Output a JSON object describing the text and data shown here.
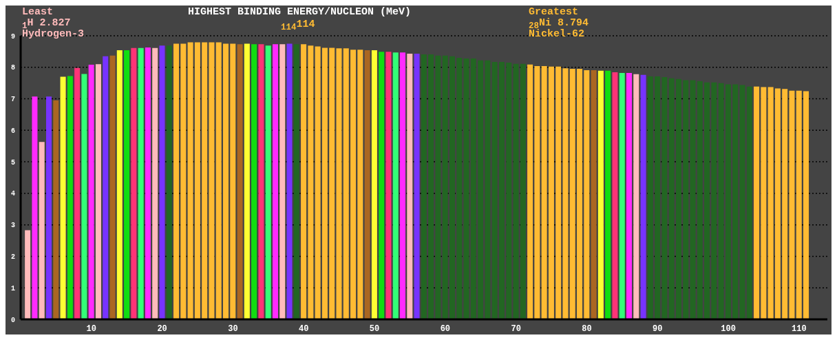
{
  "chart_data": {
    "type": "bar",
    "title": "HIGHEST BINDING ENERGY/NUCLEON (MeV)",
    "annotations": [
      "Least",
      "$_{1}$H 2.827",
      "Hydrogen-3",
      "$_{114}$114",
      "Greatest",
      "$_{28}$Ni 8.794",
      "Nickel-62"
    ],
    "x": [
      1,
      2,
      3,
      4,
      5,
      6,
      7,
      8,
      9,
      10,
      11,
      12,
      13,
      14,
      15,
      16,
      17,
      18,
      19,
      20,
      21,
      22,
      23,
      24,
      25,
      26,
      27,
      28,
      29,
      30,
      31,
      32,
      33,
      34,
      35,
      36,
      37,
      38,
      39,
      40,
      41,
      42,
      43,
      44,
      45,
      46,
      47,
      48,
      49,
      50,
      51,
      52,
      53,
      54,
      55,
      56,
      57,
      58,
      59,
      60,
      61,
      62,
      63,
      64,
      65,
      66,
      67,
      68,
      69,
      70,
      71,
      72,
      73,
      74,
      75,
      76,
      77,
      78,
      79,
      80,
      81,
      82,
      83,
      84,
      85,
      86,
      87,
      88,
      89,
      90,
      91,
      92,
      93,
      94,
      95,
      96,
      97,
      98,
      99,
      100,
      101,
      102,
      103,
      104,
      105,
      106,
      107,
      108,
      109,
      110,
      111
    ],
    "values": [
      2.827,
      7.07,
      5.63,
      7.07,
      6.95,
      7.7,
      7.72,
      7.98,
      7.79,
      8.08,
      8.1,
      8.35,
      8.37,
      8.54,
      8.54,
      8.61,
      8.61,
      8.63,
      8.61,
      8.69,
      8.69,
      8.75,
      8.75,
      8.79,
      8.79,
      8.79,
      8.79,
      8.794,
      8.75,
      8.75,
      8.73,
      8.75,
      8.73,
      8.73,
      8.69,
      8.73,
      8.73,
      8.75,
      8.73,
      8.73,
      8.69,
      8.66,
      8.62,
      8.62,
      8.6,
      8.6,
      8.56,
      8.56,
      8.54,
      8.54,
      8.49,
      8.49,
      8.47,
      8.47,
      8.43,
      8.43,
      8.41,
      8.41,
      8.37,
      8.37,
      8.35,
      8.3,
      8.28,
      8.28,
      8.22,
      8.22,
      8.17,
      8.17,
      8.15,
      8.11,
      8.11,
      8.09,
      8.04,
      8.04,
      8.02,
      8.02,
      7.97,
      7.95,
      7.95,
      7.91,
      7.91,
      7.89,
      7.89,
      7.84,
      7.82,
      7.82,
      7.78,
      7.76,
      7.71,
      7.71,
      7.69,
      7.65,
      7.63,
      7.59,
      7.59,
      7.56,
      7.52,
      7.52,
      7.5,
      7.46,
      7.46,
      7.44,
      7.39,
      7.39,
      7.37,
      7.37,
      7.33,
      7.31,
      7.26,
      7.26,
      7.24
    ],
    "colors": [
      "#ffbbbb",
      "#ff2aff",
      "#ffbbbb",
      "#7733ff",
      "#aa6622",
      "#ffff33",
      "#11dd11",
      "#ff3377",
      "#33ff77",
      "#ff2aff",
      "#ffbbbb",
      "#7733ff",
      "#aa6622",
      "#ffff33",
      "#11dd11",
      "#ff3377",
      "#33ff77",
      "#ff2aff",
      "#ffbbbb",
      "#7733ff",
      "#226622",
      "#ffbb33",
      "#ffbb33",
      "#ffbb33",
      "#ffbb33",
      "#ffbb33",
      "#ffbb33",
      "#ffbb33",
      "#ffbb33",
      "#ffbb33",
      "#aa6622",
      "#ffff33",
      "#11dd11",
      "#ff3377",
      "#33ff77",
      "#ff2aff",
      "#ffbbbb",
      "#7733ff",
      "#226622",
      "#ffbb33",
      "#ffbb33",
      "#ffbb33",
      "#ffbb33",
      "#ffbb33",
      "#ffbb33",
      "#ffbb33",
      "#ffbb33",
      "#ffbb33",
      "#aa6622",
      "#ffff33",
      "#11dd11",
      "#ff3377",
      "#33ff77",
      "#ff2aff",
      "#ffbbbb",
      "#7733ff",
      "#226622",
      "#226622",
      "#226622",
      "#226622",
      "#226622",
      "#226622",
      "#226622",
      "#226622",
      "#226622",
      "#226622",
      "#226622",
      "#226622",
      "#226622",
      "#226622",
      "#226622",
      "#ffbb33",
      "#ffbb33",
      "#ffbb33",
      "#ffbb33",
      "#ffbb33",
      "#ffbb33",
      "#ffbb33",
      "#ffbb33",
      "#ffbb33",
      "#aa6622",
      "#ffff33",
      "#11dd11",
      "#ff3377",
      "#33ff77",
      "#ff2aff",
      "#ffbbbb",
      "#7733ff",
      "#226622",
      "#226622",
      "#226622",
      "#226622",
      "#226622",
      "#226622",
      "#226622",
      "#226622",
      "#226622",
      "#226622",
      "#226622",
      "#226622",
      "#226622",
      "#226622",
      "#226622",
      "#ffbb33",
      "#ffbb33",
      "#ffbb33",
      "#ffbb33",
      "#ffbb33",
      "#ffbb33",
      "#ffbb33",
      "#ffbb33"
    ],
    "xlim": [
      0,
      114
    ],
    "xticks": [
      10,
      20,
      30,
      40,
      50,
      60,
      70,
      80,
      90,
      100,
      110
    ],
    "ylim": [
      0,
      9
    ],
    "yticks": [
      0,
      1,
      2,
      3,
      4,
      5,
      6,
      7,
      8,
      9
    ],
    "grid": "y"
  }
}
